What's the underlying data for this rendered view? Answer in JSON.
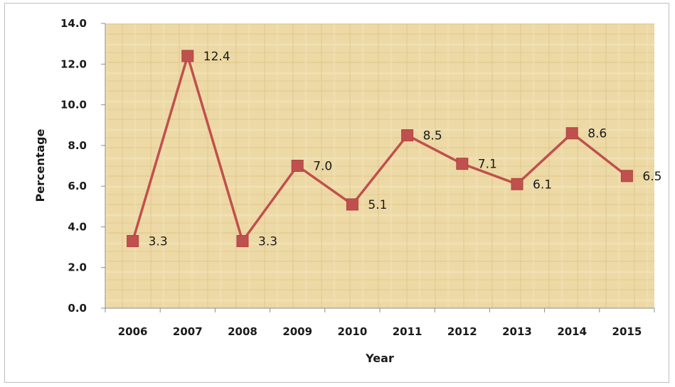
{
  "chart_data": {
    "type": "line",
    "title": "",
    "xlabel": "Year",
    "ylabel": "Percentage",
    "categories": [
      "2006",
      "2007",
      "2008",
      "2009",
      "2010",
      "2011",
      "2012",
      "2013",
      "2014",
      "2015"
    ],
    "series": [
      {
        "values": [
          3.3,
          12.4,
          3.3,
          7.0,
          5.1,
          8.5,
          7.1,
          6.1,
          8.6,
          6.5
        ]
      }
    ],
    "data_labels": [
      "3.3",
      "12.4",
      "3.3",
      "7.0",
      "5.1",
      "8.5",
      "7.1",
      "6.1",
      "8.6",
      "6.5"
    ],
    "y_ticks": [
      "0.0",
      "2.0",
      "4.0",
      "6.0",
      "8.0",
      "10.0",
      "12.0",
      "14.0"
    ],
    "ylim": [
      0,
      14
    ],
    "grid": false,
    "legend": "none",
    "colors": {
      "line": "#c0504d",
      "marker": "#c0504d",
      "plot_background": "#ecd9a6",
      "axis": "#8c8c8c"
    }
  }
}
